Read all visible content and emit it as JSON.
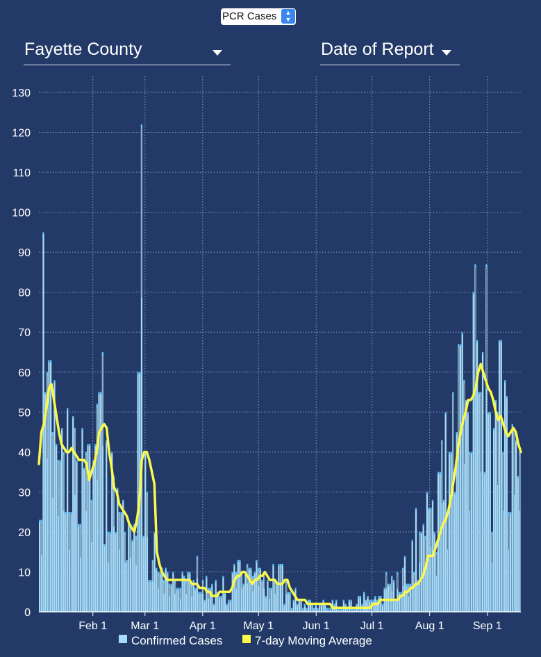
{
  "controls": {
    "metric_select": "PCR Cases",
    "county_select": "Fayette County",
    "date_select": "Date of Report"
  },
  "colors": {
    "background": "#233a68",
    "bars": "#a6dcf8",
    "bar_top": "#55b6f0",
    "bar_dark": "#4a5564",
    "moving_average": "#fbf94a",
    "grid": "#8a9ecb"
  },
  "chart_data": {
    "type": "bar",
    "x_type": "date",
    "start_date": "2021-01-03",
    "end_date": "2021-09-19",
    "ylim": [
      0,
      130
    ],
    "yticks": [
      0,
      10,
      20,
      30,
      40,
      50,
      60,
      70,
      80,
      90,
      100,
      110,
      120,
      130
    ],
    "xticks": [
      {
        "date": "2021-02-01",
        "label": "Feb 1"
      },
      {
        "date": "2021-03-01",
        "label": "Mar 1"
      },
      {
        "date": "2021-04-01",
        "label": "Apr 1"
      },
      {
        "date": "2021-05-01",
        "label": "May 1"
      },
      {
        "date": "2021-06-01",
        "label": "Jun 1"
      },
      {
        "date": "2021-07-01",
        "label": "Jul 1"
      },
      {
        "date": "2021-08-01",
        "label": "Aug 1"
      },
      {
        "date": "2021-09-01",
        "label": "Sep 1"
      }
    ],
    "grid": true,
    "legend_position": "bottom",
    "series": [
      {
        "name": "Confirmed Cases",
        "type": "bar",
        "values": [
          23,
          95,
          55,
          60,
          63,
          45,
          58,
          42,
          38,
          46,
          40,
          25,
          51,
          25,
          49,
          46,
          38,
          22,
          46,
          36,
          40,
          42,
          28,
          38,
          42,
          52,
          55,
          65,
          17,
          43,
          20,
          40,
          34,
          20,
          31,
          25,
          28,
          20,
          13,
          22,
          18,
          22,
          19,
          60,
          122,
          19,
          40,
          30,
          8,
          13,
          20,
          11,
          10,
          11,
          8,
          11,
          10,
          7,
          10,
          8,
          6,
          6,
          10,
          9,
          8,
          10,
          7,
          8,
          6,
          14,
          5,
          8,
          3,
          9,
          6,
          7,
          2,
          8,
          5,
          4,
          9,
          5,
          2,
          3,
          10,
          12,
          10,
          13,
          10,
          7,
          10,
          12,
          11,
          9,
          10,
          13,
          11,
          8,
          10,
          4,
          8,
          6,
          12,
          8,
          7,
          12,
          12,
          2,
          8,
          5,
          1,
          3,
          6,
          2,
          3,
          1,
          2,
          1,
          3,
          2,
          1,
          2,
          1,
          2,
          3,
          2,
          1,
          1,
          3,
          2,
          3,
          1,
          1,
          3,
          2,
          1,
          3,
          1,
          1,
          2,
          4,
          2,
          5,
          3,
          4,
          3,
          3,
          4,
          3,
          4,
          2,
          6,
          10,
          7,
          9,
          8,
          3,
          10,
          5,
          11,
          14,
          7,
          7,
          18,
          10,
          26,
          8,
          20,
          22,
          19,
          30,
          26,
          28,
          20,
          15,
          35,
          43,
          28,
          50,
          25,
          40,
          55,
          30,
          45,
          67,
          70,
          58,
          53,
          50,
          40,
          80,
          87,
          68,
          55,
          65,
          35,
          87,
          50,
          20,
          46,
          53,
          50,
          68,
          40,
          58,
          54,
          25,
          47,
          46,
          43,
          34,
          40
        ],
        "flat_segments": [
          {
            "from": 84,
            "to": 98,
            "value": 8
          },
          {
            "from": 120,
            "to": 140,
            "value": 1
          },
          {
            "from": 204,
            "to": 208,
            "value": 38
          },
          {
            "from": 221,
            "to": 259,
            "value": 40
          }
        ]
      },
      {
        "name": "7-day Moving Average",
        "type": "line",
        "values": [
          37,
          45,
          47,
          51,
          56,
          57,
          53,
          49,
          45,
          42,
          41,
          40,
          40,
          41,
          40,
          39,
          38,
          38,
          38,
          37,
          33,
          35,
          37,
          40,
          45,
          46,
          47,
          46,
          40,
          36,
          31,
          30,
          27,
          26,
          25,
          24,
          22,
          21,
          20,
          23,
          27,
          38,
          40,
          40,
          38,
          35,
          32,
          15,
          12,
          10,
          9,
          8,
          8,
          8,
          8,
          8,
          8,
          8,
          8,
          8,
          8,
          7,
          7,
          7,
          6,
          6,
          6,
          5,
          5,
          4,
          4,
          4,
          5,
          5,
          5,
          5,
          5,
          6,
          8,
          9,
          9,
          10,
          10,
          9,
          8,
          7,
          8,
          8,
          9,
          9,
          10,
          9,
          8,
          8,
          8,
          7,
          7,
          7,
          8,
          8,
          6,
          5,
          4,
          3,
          3,
          3,
          3,
          2,
          2,
          2,
          2,
          2,
          2,
          2,
          2,
          2,
          2,
          1,
          1,
          1,
          1,
          1,
          1,
          1,
          1,
          1,
          1,
          1,
          1,
          1,
          1,
          1,
          1,
          2,
          2,
          2,
          3,
          3,
          3,
          3,
          3,
          3,
          3,
          3,
          4,
          4,
          5,
          5,
          6,
          6,
          7,
          7,
          8,
          9,
          11,
          14,
          14,
          14,
          16,
          18,
          20,
          22,
          23,
          25,
          28,
          32,
          36,
          41,
          45,
          48,
          50,
          53,
          53,
          54,
          56,
          60,
          62,
          60,
          58,
          56,
          55,
          53,
          50,
          48,
          49,
          47,
          45,
          44,
          45,
          46,
          45,
          42,
          40
        ]
      }
    ]
  }
}
